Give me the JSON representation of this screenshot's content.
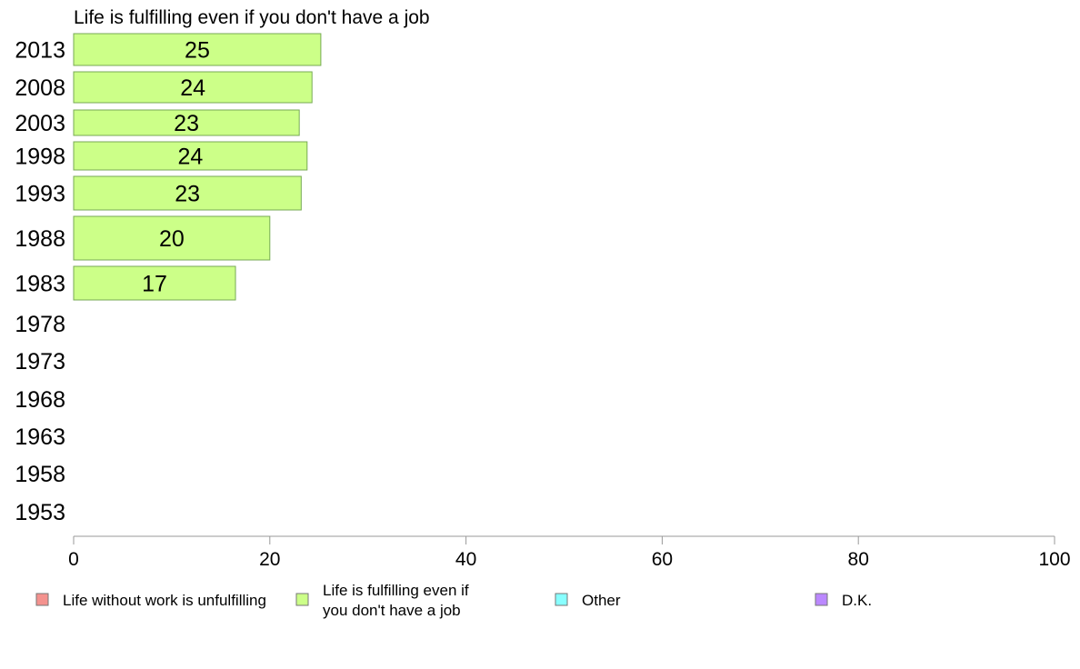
{
  "chart_data": {
    "type": "bar",
    "orientation": "horizontal",
    "title": "Life is fulfilling even if you don't have a job",
    "categories": [
      "2013",
      "2008",
      "2003",
      "1998",
      "1993",
      "1988",
      "1983",
      "1978",
      "1973",
      "1968",
      "1963",
      "1958",
      "1953"
    ],
    "series": [
      {
        "name": "Life is fulfilling even if you don't have a job",
        "values": [
          25.2,
          24.3,
          23,
          23.8,
          23.2,
          20,
          16.5,
          null,
          null,
          null,
          null,
          null,
          null
        ],
        "labels": [
          "25",
          "24",
          "23",
          "24",
          "23",
          "20",
          "17",
          "",
          "",
          "",
          "",
          "",
          ""
        ]
      }
    ],
    "xlim": [
      0,
      100
    ],
    "xticks": [
      0,
      20,
      40,
      60,
      80,
      100
    ],
    "grid": false,
    "legend_position": "bottom",
    "legend": [
      {
        "label": "Life without work is unfulfilling",
        "color": "#f4928e"
      },
      {
        "label": "Life is fulfilling even if you don't have a job",
        "color": "#ccff88"
      },
      {
        "label": "Other",
        "color": "#88ffff"
      },
      {
        "label": "D.K.",
        "color": "#bb88ff"
      }
    ],
    "colors": {
      "bar_fill": "#ccff88",
      "bar_stroke": "#77aa55",
      "axis": "#999999"
    }
  }
}
